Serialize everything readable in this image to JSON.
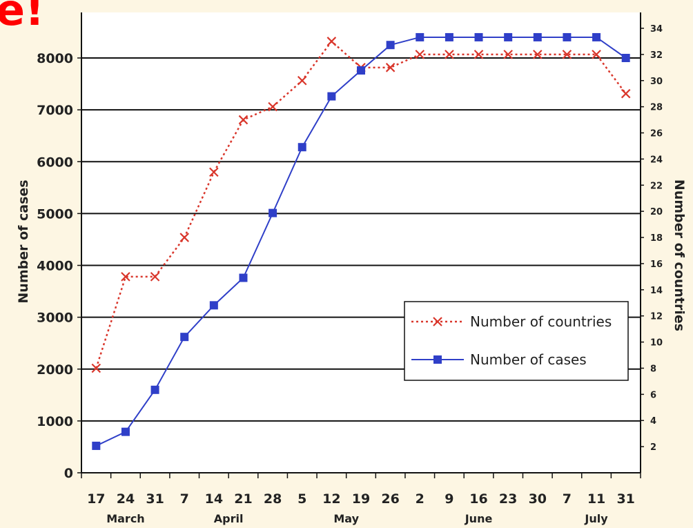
{
  "overlay": {
    "corner_text": "e!"
  },
  "chart_data": {
    "type": "line",
    "x_tick_labels": [
      "17",
      "24",
      "31",
      "7",
      "14",
      "21",
      "28",
      "5",
      "12",
      "19",
      "26",
      "2",
      "9",
      "16",
      "23",
      "30",
      "7",
      "11",
      "31"
    ],
    "month_labels": [
      {
        "label": "March",
        "span": [
          0,
          2
        ]
      },
      {
        "label": "April",
        "span": [
          3,
          6
        ]
      },
      {
        "label": "May",
        "span": [
          7,
          10
        ]
      },
      {
        "label": "June",
        "span": [
          11,
          15
        ]
      },
      {
        "label": "July",
        "span": [
          16,
          18
        ]
      }
    ],
    "ylabel": "Number of cases",
    "ylabel_right": "Number of countries",
    "ylim": [
      0,
      8000
    ],
    "y_ticks": [
      0,
      1000,
      2000,
      3000,
      4000,
      5000,
      6000,
      7000,
      8000
    ],
    "y_tick_labels": [
      "0",
      "1000",
      "2000",
      "3000",
      "4000",
      "5000",
      "6000",
      "7000",
      "8000"
    ],
    "ylim_right": [
      0,
      34
    ],
    "y_ticks_right": [
      2,
      4,
      6,
      8,
      10,
      12,
      14,
      16,
      18,
      20,
      22,
      24,
      26,
      28,
      30,
      32,
      34
    ],
    "y_tick_labels_right": [
      "2",
      "4",
      "6",
      "8",
      "10",
      "12",
      "14",
      "16",
      "18",
      "20",
      "22",
      "24",
      "26",
      "28",
      "30",
      "32",
      "34"
    ],
    "grid": true,
    "legend_position": "center-right",
    "series": [
      {
        "name": "Number of countries",
        "axis": "right",
        "style": "dotted",
        "marker": "x",
        "color": "#d9362b",
        "values": [
          8,
          15,
          15,
          18,
          23,
          27,
          28,
          30,
          33,
          31,
          31,
          32,
          32,
          32,
          32,
          32,
          32,
          32,
          29
        ]
      },
      {
        "name": "Number of cases",
        "axis": "left",
        "style": "solid",
        "marker": "square",
        "color": "#2f3fc8",
        "values": [
          520,
          790,
          1600,
          2620,
          3230,
          3760,
          5010,
          6280,
          7260,
          7760,
          8250,
          8400,
          8400,
          8400,
          8400,
          8400,
          8400,
          8400,
          8000
        ]
      }
    ]
  }
}
